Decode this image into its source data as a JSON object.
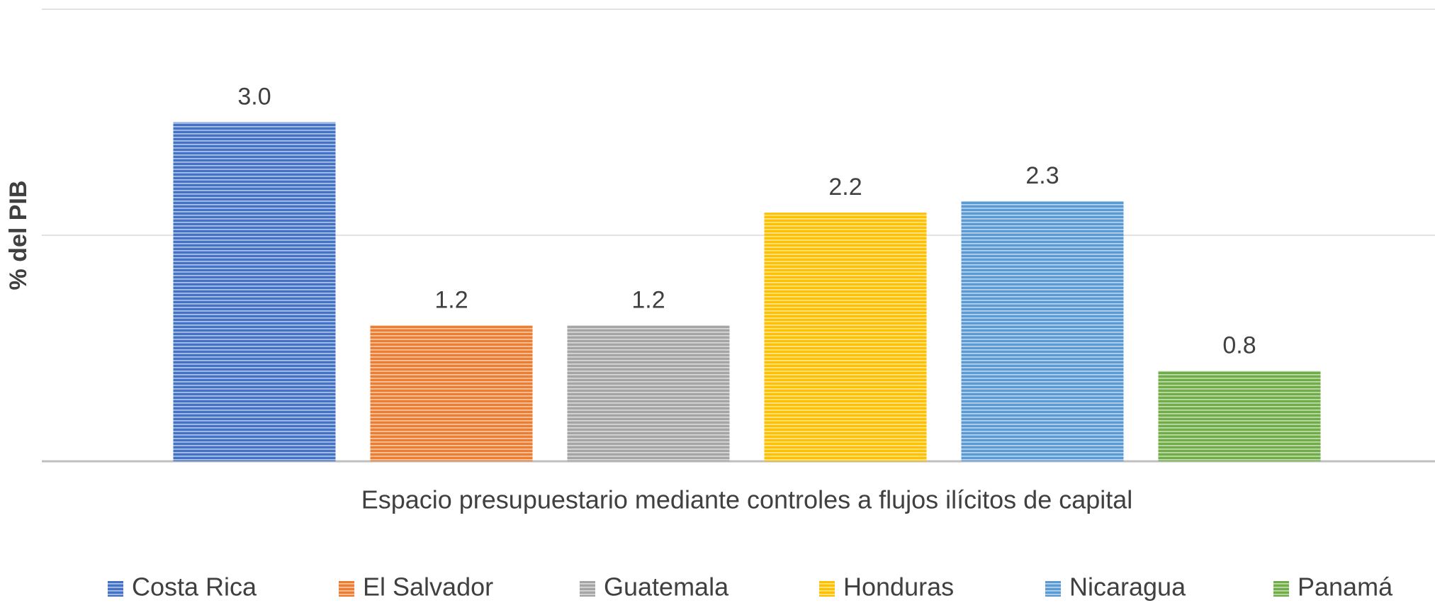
{
  "chart_data": {
    "type": "bar",
    "y_label": "% del PIB",
    "categories": [
      "Espacio presupuestario mediante controles a flujos ilícitos de capital"
    ],
    "series": [
      {
        "name": "Costa Rica",
        "color": "#4472c4",
        "values": [
          3.0
        ],
        "value_labels": [
          "3.0"
        ]
      },
      {
        "name": "El Salvador",
        "color": "#ed7d31",
        "values": [
          1.2
        ]
      },
      {
        "name": "Guatemala",
        "color": "#a5a5a5",
        "values": [
          1.2
        ]
      },
      {
        "name": "Honduras",
        "color": "#ffc000",
        "values": [
          2.2
        ]
      },
      {
        "name": "Nicaragua",
        "color": "#5b9bd5",
        "values": [
          2.3
        ]
      },
      {
        "name": "Panamá",
        "color": "#70ad47",
        "values": [
          0.8
        ]
      }
    ],
    "ylim": [
      0,
      4
    ],
    "yticks": [
      0,
      2,
      4
    ],
    "grid": true,
    "legend": "bottom"
  }
}
